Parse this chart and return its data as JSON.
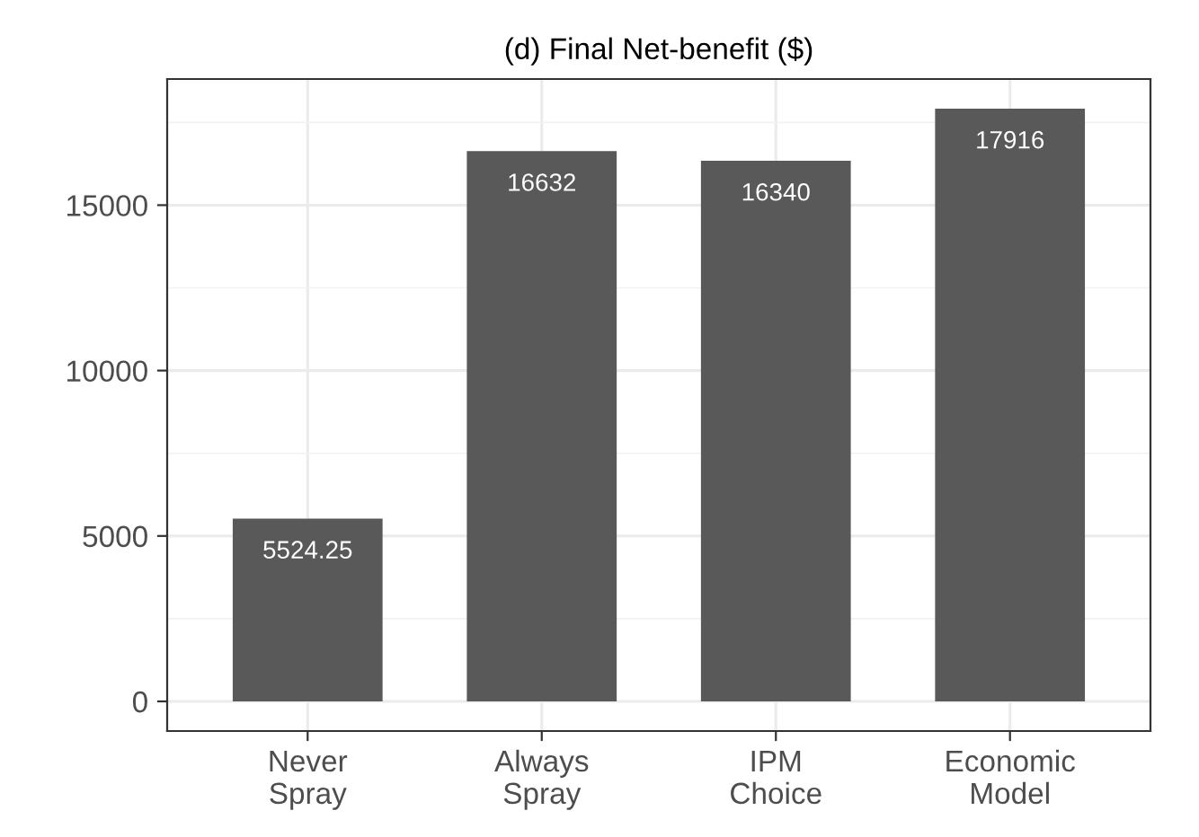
{
  "chart_data": {
    "type": "bar",
    "title": "(d) Final Net-benefit ($)",
    "categories": [
      "Never\nSpray",
      "Always\nSpray",
      "IPM\nChoice",
      "Economic\nModel"
    ],
    "values": [
      5524.25,
      16632,
      16340,
      17916
    ],
    "color": "#595959",
    "ylim": [
      -896,
      18812
    ],
    "yticks": [
      0,
      5000,
      10000,
      15000
    ],
    "grid": true,
    "data_labels": true
  }
}
